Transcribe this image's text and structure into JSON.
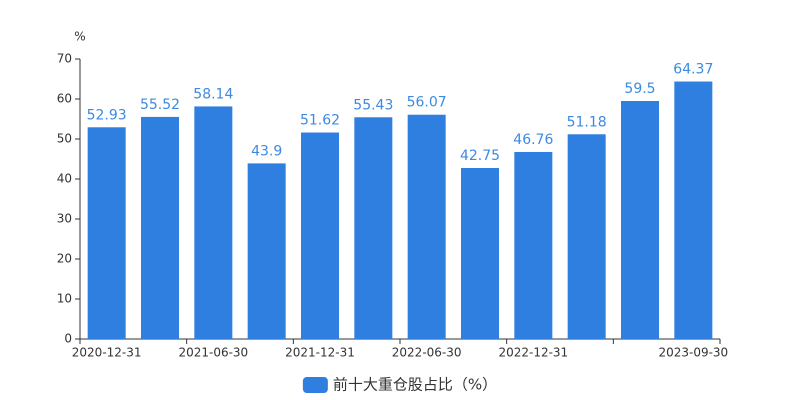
{
  "chart_data": {
    "type": "bar",
    "y_unit": "%",
    "categories": [
      "2020-12-31",
      null,
      "2021-06-30",
      null,
      "2021-12-31",
      null,
      "2022-06-30",
      null,
      "2022-12-31",
      null,
      null,
      "2023-09-30"
    ],
    "series": [
      {
        "name": "前十大重仓股占比（%）",
        "color": "#2e7fe0",
        "values": [
          52.93,
          55.52,
          58.14,
          43.9,
          51.62,
          55.43,
          56.07,
          42.75,
          46.76,
          51.18,
          59.5,
          64.37
        ]
      }
    ],
    "ylim": [
      0,
      70
    ],
    "yticks": [
      0,
      10,
      20,
      30,
      40,
      50,
      60,
      70
    ],
    "grid": false,
    "legend": "bottom"
  }
}
